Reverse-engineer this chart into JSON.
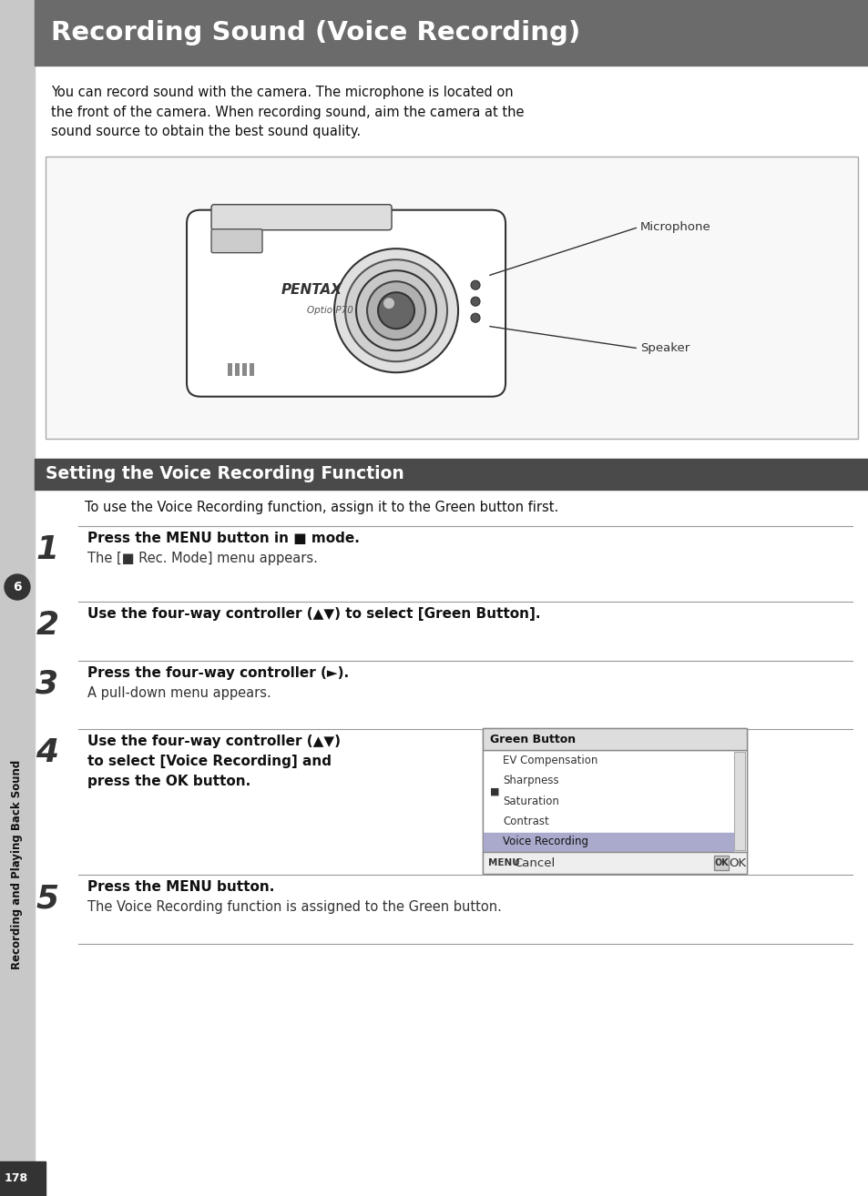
{
  "page_bg": "#ffffff",
  "title_bg": "#6b6b6b",
  "title_text": "Recording Sound (Voice Recording)",
  "title_color": "#ffffff",
  "section_bg": "#4a4a4a",
  "section_text": "Setting the Voice Recording Function",
  "section_color": "#ffffff",
  "sidebar_bg": "#c8c8c8",
  "sidebar_text": "Recording and Playing Back Sound",
  "sidebar_number": "6",
  "page_number": "178",
  "intro_text": "You can record sound with the camera. The microphone is located on\nthe front of the camera. When recording sound, aim the camera at the\nsound source to obtain the best sound quality.",
  "camera_box_bg": "#f8f8f8",
  "camera_box_border": "#aaaaaa",
  "microphone_label": "Microphone",
  "speaker_label": "Speaker",
  "section_intro": "To use the Voice Recording function, assign it to the Green button first.",
  "steps": [
    {
      "number": "1",
      "bold_text": "Press the MENU button in ■ mode.",
      "normal_text": "The [■ Rec. Mode] menu appears.",
      "has_menu": false
    },
    {
      "number": "2",
      "bold_text": "Use the four-way controller (▲▼) to select [Green Button].",
      "normal_text": "",
      "has_menu": false
    },
    {
      "number": "3",
      "bold_text": "Press the four-way controller (►).",
      "normal_text": "A pull-down menu appears.",
      "has_menu": false
    },
    {
      "number": "4",
      "bold_text": "Use the four-way controller (▲▼)\nto select [Voice Recording] and\npress the OK button.",
      "normal_text": "",
      "has_menu": true
    },
    {
      "number": "5",
      "bold_text": "Press the MENU button.",
      "normal_text": "The Voice Recording function is assigned to the Green button.",
      "has_menu": false
    }
  ],
  "menu_title": "Green Button",
  "menu_items": [
    "EV Compensation",
    "Sharpness",
    "Saturation",
    "Contrast",
    "Voice Recording"
  ],
  "menu_icons": [
    "▣",
    "©",
    "&",
    "©",
    "©"
  ],
  "menu_cancel": "Cancel",
  "menu_ok": "OK"
}
